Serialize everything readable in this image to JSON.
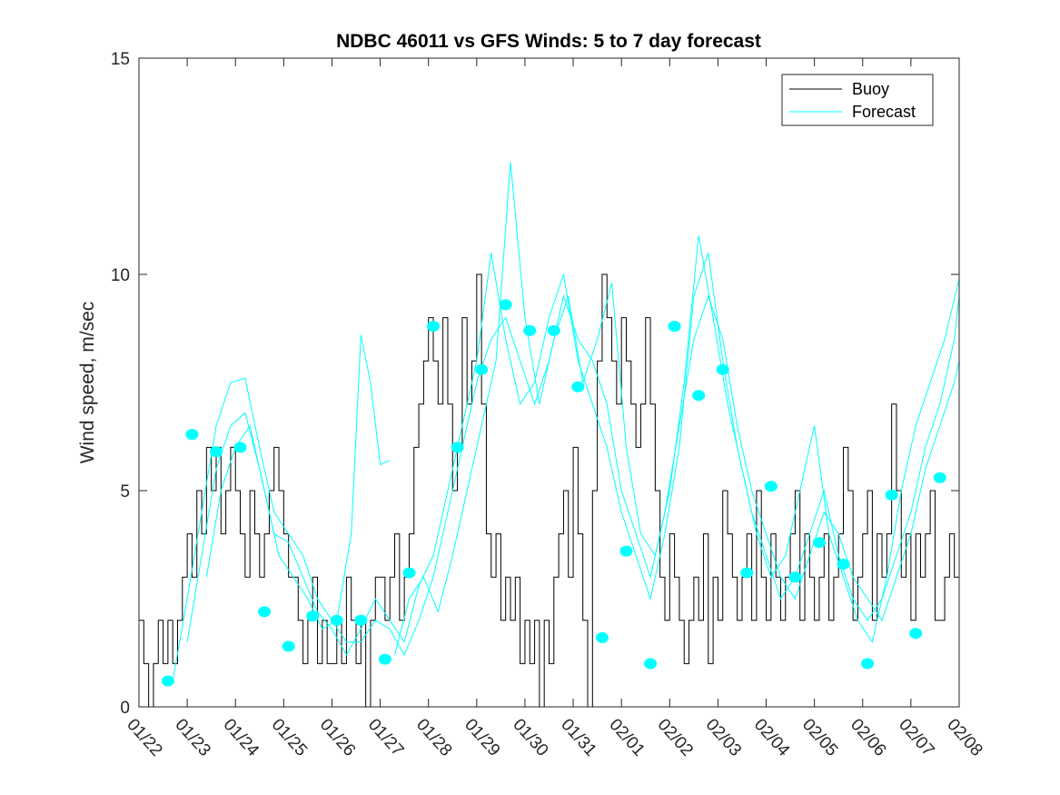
{
  "chart_data": {
    "type": "line",
    "title": "NDBC 46011 vs GFS Winds: 5 to 7 day forecast",
    "xlabel": "",
    "ylabel": "Wind speed, m/sec",
    "xlim": [
      0,
      17
    ],
    "ylim": [
      0,
      15
    ],
    "yticks": [
      0,
      5,
      10,
      15
    ],
    "x_tick_labels": [
      "01/22",
      "01/23",
      "01/24",
      "01/25",
      "01/26",
      "01/27",
      "01/28",
      "01/29",
      "01/30",
      "01/31",
      "02/01",
      "02/02",
      "02/03",
      "02/04",
      "02/05",
      "02/06",
      "02/07",
      "02/08"
    ],
    "legend": {
      "placement": "top-right",
      "entries": [
        "Buoy",
        "Forecast"
      ]
    },
    "colors": {
      "buoy": "#000000",
      "forecast": "#00ffff"
    },
    "series": [
      {
        "name": "Buoy",
        "x": [
          0,
          0.1,
          0.2,
          0.3,
          0.4,
          0.5,
          0.6,
          0.7,
          0.8,
          0.9,
          1.0,
          1.1,
          1.2,
          1.3,
          1.4,
          1.5,
          1.6,
          1.7,
          1.8,
          1.9,
          2.0,
          2.1,
          2.2,
          2.3,
          2.4,
          2.5,
          2.6,
          2.7,
          2.8,
          2.9,
          3.0,
          3.1,
          3.2,
          3.3,
          3.4,
          3.5,
          3.6,
          3.7,
          3.8,
          3.9,
          4.0,
          4.1,
          4.2,
          4.3,
          4.4,
          4.5,
          4.6,
          4.7,
          4.8,
          4.9,
          5.0,
          5.1,
          5.2,
          5.3,
          5.4,
          5.5,
          5.6,
          5.7,
          5.8,
          5.9,
          6.0,
          6.1,
          6.2,
          6.3,
          6.4,
          6.5,
          6.6,
          6.7,
          6.8,
          6.9,
          7.0,
          7.1,
          7.2,
          7.3,
          7.4,
          7.5,
          7.6,
          7.7,
          7.8,
          7.9,
          8.0,
          8.1,
          8.2,
          8.3,
          8.4,
          8.5,
          8.6,
          8.7,
          8.8,
          8.9,
          9.0,
          9.1,
          9.2,
          9.3,
          9.4,
          9.5,
          9.6,
          9.7,
          9.8,
          9.9,
          10.0,
          10.1,
          10.2,
          10.3,
          10.4,
          10.5,
          10.6,
          10.7,
          10.8,
          10.9,
          11.0,
          11.1,
          11.2,
          11.3,
          11.4,
          11.5,
          11.6,
          11.7,
          11.8,
          11.9,
          12.0,
          12.1,
          12.2,
          12.3,
          12.4,
          12.5,
          12.6,
          12.7,
          12.8,
          12.9,
          13.0,
          13.1,
          13.2,
          13.3,
          13.4,
          13.5,
          13.6,
          13.7,
          13.8,
          13.9,
          14.0,
          14.1,
          14.2,
          14.3,
          14.4,
          14.5,
          14.6,
          14.7,
          14.8,
          14.9,
          15.0,
          15.1,
          15.2,
          15.3,
          15.4,
          15.5,
          15.6,
          15.7,
          15.8,
          15.9,
          16.0,
          16.1,
          16.2,
          16.3,
          16.4,
          16.5,
          16.6,
          16.7,
          16.8,
          16.9,
          17.0
        ],
        "values": [
          2,
          1,
          0,
          1,
          2,
          1,
          2,
          1,
          2,
          3,
          4,
          3,
          5,
          4,
          6,
          5,
          6,
          4,
          5,
          6,
          5,
          4,
          3,
          5,
          4,
          3,
          4,
          5,
          6,
          5,
          4,
          3,
          3,
          2,
          1,
          2,
          3,
          1,
          2,
          1,
          1,
          2,
          1,
          3,
          2,
          1,
          2,
          0,
          2,
          3,
          3,
          2,
          3,
          4,
          2,
          3,
          4,
          6,
          7,
          8,
          9,
          8,
          7,
          9,
          7,
          5,
          6,
          9,
          7,
          8,
          10,
          7,
          4,
          3,
          4,
          2,
          3,
          2,
          3,
          1,
          2,
          1,
          2,
          0,
          2,
          1,
          3,
          4,
          5,
          3,
          6,
          4,
          2,
          0,
          5,
          8,
          10,
          9,
          8,
          7,
          9,
          8,
          7,
          6,
          7,
          9,
          7,
          5,
          3,
          2,
          4,
          3,
          2,
          1,
          2,
          3,
          2,
          4,
          1,
          3,
          2,
          5,
          4,
          3,
          2,
          3,
          4,
          2,
          5,
          3,
          2,
          4,
          3,
          2,
          3,
          4,
          5,
          2,
          4,
          3,
          2,
          3,
          4,
          2,
          3,
          4,
          6,
          5,
          2,
          3,
          4,
          5,
          2,
          4,
          3,
          4,
          7,
          5,
          3,
          4,
          2,
          4,
          3,
          4,
          5,
          2,
          2,
          3,
          4,
          3,
          2
        ]
      },
      {
        "name": "Forecast",
        "lines": [
          [
            [
              0.7,
              0.6
            ],
            [
              1.0,
              2.5
            ],
            [
              1.3,
              4.5
            ],
            [
              1.6,
              6.5
            ],
            [
              1.9,
              7.5
            ],
            [
              2.2,
              7.6
            ],
            [
              2.5,
              6.0
            ],
            [
              2.8,
              4.5
            ],
            [
              3.1,
              4.0
            ],
            [
              3.4,
              3.5
            ],
            [
              3.7,
              2.5
            ],
            [
              4.0,
              2.0
            ],
            [
              4.3,
              1.5
            ],
            [
              4.6,
              1.5
            ],
            [
              4.9,
              2.0
            ],
            [
              5.2,
              1.8
            ],
            [
              5.5,
              1.2
            ],
            [
              5.8,
              2.0
            ],
            [
              6.1,
              3.0
            ],
            [
              6.4,
              4.5
            ],
            [
              6.7,
              6.0
            ],
            [
              7.0,
              7.5
            ],
            [
              7.3,
              8.5
            ],
            [
              7.6,
              9.0
            ],
            [
              7.9,
              8.0
            ],
            [
              8.2,
              7.0
            ],
            [
              8.5,
              8.0
            ],
            [
              8.8,
              9.5
            ],
            [
              9.1,
              8.5
            ],
            [
              9.4,
              8.0
            ],
            [
              9.7,
              7.0
            ],
            [
              10.0,
              5.0
            ],
            [
              10.3,
              4.0
            ],
            [
              10.6,
              3.0
            ],
            [
              10.9,
              4.5
            ],
            [
              11.2,
              6.5
            ],
            [
              11.5,
              8.5
            ],
            [
              11.8,
              9.5
            ],
            [
              12.1,
              8.5
            ],
            [
              12.4,
              6.5
            ],
            [
              12.7,
              5.0
            ],
            [
              13.0,
              4.0
            ],
            [
              13.3,
              3.0
            ],
            [
              13.6,
              2.5
            ],
            [
              13.9,
              3.5
            ],
            [
              14.2,
              4.5
            ],
            [
              14.5,
              4.0
            ],
            [
              14.8,
              3.0
            ],
            [
              15.1,
              2.5
            ],
            [
              15.4,
              2.0
            ],
            [
              15.7,
              3.0
            ],
            [
              16.0,
              4.0
            ],
            [
              16.3,
              5.5
            ],
            [
              16.6,
              6.5
            ],
            [
              16.9,
              7.5
            ],
            [
              17.0,
              8.0
            ]
          ],
          [
            [
              1.0,
              1.5
            ],
            [
              1.3,
              3.5
            ],
            [
              1.6,
              5.5
            ],
            [
              1.9,
              6.5
            ],
            [
              2.2,
              6.8
            ],
            [
              2.5,
              5.5
            ],
            [
              2.8,
              4.0
            ],
            [
              3.1,
              3.8
            ],
            [
              3.4,
              3.0
            ],
            [
              3.7,
              2.2
            ],
            [
              4.0,
              1.8
            ],
            [
              4.3,
              1.2
            ],
            [
              4.6,
              1.8
            ],
            [
              4.9,
              2.5
            ],
            [
              5.2,
              2.0
            ],
            [
              5.5,
              1.5
            ],
            [
              5.8,
              2.8
            ],
            [
              6.1,
              3.5
            ],
            [
              6.4,
              5.0
            ],
            [
              6.7,
              6.5
            ],
            [
              7.0,
              8.0
            ],
            [
              7.3,
              10.5
            ],
            [
              7.6,
              8.5
            ],
            [
              7.9,
              7.0
            ],
            [
              8.2,
              7.5
            ],
            [
              8.5,
              9.0
            ],
            [
              8.8,
              10.0
            ],
            [
              9.1,
              8.0
            ],
            [
              9.4,
              7.0
            ],
            [
              9.7,
              6.0
            ],
            [
              10.0,
              4.5
            ],
            [
              10.3,
              3.5
            ],
            [
              10.6,
              2.5
            ],
            [
              10.9,
              4.0
            ],
            [
              11.2,
              6.0
            ],
            [
              11.5,
              9.5
            ],
            [
              11.8,
              10.5
            ],
            [
              12.1,
              8.0
            ],
            [
              12.4,
              6.0
            ],
            [
              12.7,
              4.5
            ],
            [
              13.0,
              3.5
            ],
            [
              13.3,
              2.5
            ],
            [
              13.6,
              3.0
            ],
            [
              13.9,
              4.0
            ],
            [
              14.2,
              5.0
            ],
            [
              14.5,
              3.5
            ],
            [
              14.8,
              2.5
            ],
            [
              15.1,
              2.0
            ],
            [
              15.4,
              2.5
            ],
            [
              15.7,
              3.5
            ],
            [
              16.0,
              4.5
            ],
            [
              16.3,
              6.0
            ],
            [
              16.6,
              7.0
            ],
            [
              16.9,
              8.5
            ],
            [
              17.0,
              9.5
            ]
          ],
          [
            [
              1.4,
              3.0
            ],
            [
              1.7,
              5.0
            ],
            [
              2.0,
              6.0
            ],
            [
              2.3,
              6.5
            ],
            [
              2.6,
              5.0
            ],
            [
              2.9,
              3.5
            ],
            [
              3.2,
              3.0
            ],
            [
              3.5,
              2.5
            ],
            [
              3.8,
              1.8
            ],
            [
              4.1,
              2.0
            ],
            [
              4.4,
              4.0
            ],
            [
              4.6,
              8.6
            ],
            [
              4.8,
              7.5
            ],
            [
              5.0,
              5.6
            ],
            [
              5.2,
              5.7
            ]
          ],
          [
            [
              5.3,
              1.2
            ],
            [
              5.6,
              2.5
            ],
            [
              5.9,
              3.0
            ],
            [
              6.2,
              2.2
            ],
            [
              6.5,
              3.5
            ],
            [
              6.8,
              5.0
            ],
            [
              7.1,
              6.5
            ],
            [
              7.4,
              8.0
            ],
            [
              7.7,
              12.6
            ],
            [
              8.0,
              9.0
            ],
            [
              8.3,
              7.0
            ],
            [
              8.6,
              8.5
            ],
            [
              8.9,
              9.5
            ],
            [
              9.2,
              7.5
            ],
            [
              9.5,
              8.5
            ],
            [
              9.8,
              9.8
            ],
            [
              10.1,
              6.0
            ],
            [
              10.4,
              4.0
            ],
            [
              10.7,
              3.5
            ],
            [
              11.0,
              5.0
            ],
            [
              11.3,
              7.5
            ],
            [
              11.6,
              10.9
            ],
            [
              11.9,
              9.0
            ],
            [
              12.2,
              7.0
            ],
            [
              12.5,
              5.5
            ],
            [
              12.8,
              4.0
            ],
            [
              13.1,
              3.0
            ],
            [
              13.4,
              3.5
            ],
            [
              13.7,
              5.0
            ],
            [
              14.0,
              6.5
            ],
            [
              14.3,
              4.0
            ],
            [
              14.6,
              3.0
            ],
            [
              14.9,
              2.0
            ],
            [
              15.2,
              1.5
            ],
            [
              15.5,
              3.0
            ],
            [
              15.8,
              5.0
            ],
            [
              16.1,
              6.5
            ],
            [
              16.4,
              7.5
            ],
            [
              16.7,
              8.5
            ],
            [
              17.0,
              9.9
            ]
          ]
        ],
        "markers": [
          [
            0.6,
            0.6
          ],
          [
            1.1,
            6.3
          ],
          [
            1.6,
            5.9
          ],
          [
            2.1,
            6.0
          ],
          [
            2.6,
            2.2
          ],
          [
            3.1,
            1.4
          ],
          [
            3.6,
            2.1
          ],
          [
            4.1,
            2.0
          ],
          [
            4.6,
            2.0
          ],
          [
            5.1,
            1.1
          ],
          [
            5.6,
            3.1
          ],
          [
            6.1,
            8.8
          ],
          [
            6.6,
            6.0
          ],
          [
            7.1,
            7.8
          ],
          [
            7.6,
            9.3
          ],
          [
            8.1,
            8.7
          ],
          [
            8.6,
            8.7
          ],
          [
            9.1,
            7.4
          ],
          [
            9.6,
            1.6
          ],
          [
            10.1,
            3.6
          ],
          [
            10.6,
            1.0
          ],
          [
            11.1,
            8.8
          ],
          [
            11.6,
            7.2
          ],
          [
            12.1,
            7.8
          ],
          [
            12.6,
            3.1
          ],
          [
            13.1,
            5.1
          ],
          [
            13.6,
            3.0
          ],
          [
            14.1,
            3.8
          ],
          [
            14.6,
            3.3
          ],
          [
            15.1,
            1.0
          ],
          [
            15.6,
            4.9
          ],
          [
            16.1,
            1.7
          ],
          [
            16.6,
            5.3
          ]
        ]
      }
    ]
  }
}
